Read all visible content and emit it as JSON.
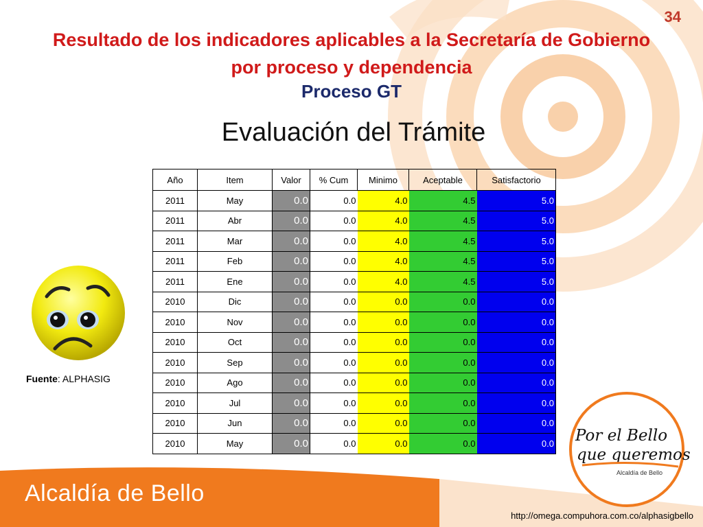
{
  "slide": {
    "page_number": "34",
    "title": "Resultado de los indicadores aplicables a la Secretaría de Gobierno por proceso y dependencia",
    "subtitle": "Proceso GT",
    "heading": "Evaluación del Trámite"
  },
  "table": {
    "headers": [
      "Año",
      "Item",
      "Valor",
      "% Cum",
      "Minimo",
      "Aceptable",
      "Satisfactorio"
    ],
    "rows": [
      [
        "2011",
        "May",
        "0.0",
        "0.0",
        "4.0",
        "4.5",
        "5.0"
      ],
      [
        "2011",
        "Abr",
        "0.0",
        "0.0",
        "4.0",
        "4.5",
        "5.0"
      ],
      [
        "2011",
        "Mar",
        "0.0",
        "0.0",
        "4.0",
        "4.5",
        "5.0"
      ],
      [
        "2011",
        "Feb",
        "0.0",
        "0.0",
        "4.0",
        "4.5",
        "5.0"
      ],
      [
        "2011",
        "Ene",
        "0.0",
        "0.0",
        "4.0",
        "4.5",
        "5.0"
      ],
      [
        "2010",
        "Dic",
        "0.0",
        "0.0",
        "0.0",
        "0.0",
        "0.0"
      ],
      [
        "2010",
        "Nov",
        "0.0",
        "0.0",
        "0.0",
        "0.0",
        "0.0"
      ],
      [
        "2010",
        "Oct",
        "0.0",
        "0.0",
        "0.0",
        "0.0",
        "0.0"
      ],
      [
        "2010",
        "Sep",
        "0.0",
        "0.0",
        "0.0",
        "0.0",
        "0.0"
      ],
      [
        "2010",
        "Ago",
        "0.0",
        "0.0",
        "0.0",
        "0.0",
        "0.0"
      ],
      [
        "2010",
        "Jul",
        "0.0",
        "0.0",
        "0.0",
        "0.0",
        "0.0"
      ],
      [
        "2010",
        "Jun",
        "0.0",
        "0.0",
        "0.0",
        "0.0",
        "0.0"
      ],
      [
        "2010",
        "May",
        "0.0",
        "0.0",
        "0.0",
        "0.0",
        "0.0"
      ]
    ]
  },
  "source": {
    "label": "Fuente",
    "value": ": ALPHASIG"
  },
  "footer": {
    "brand": "Alcaldía de Bello",
    "url": "http://omega.compuhora.com.co/alphasigbello",
    "logo_line1": "Por el Bello",
    "logo_line2": "que queremos",
    "logo_caption": "Alcaldía de Bello"
  },
  "icons": {
    "status": "sad-face-icon"
  },
  "colors": {
    "title": "#d01a1a",
    "subtitle": "#1c2a6b",
    "valor": "#8c8c8c",
    "minimo": "#ffff00",
    "aceptable": "#33cc33",
    "satisfactorio": "#0000ee",
    "footer": "#f07a1e"
  }
}
